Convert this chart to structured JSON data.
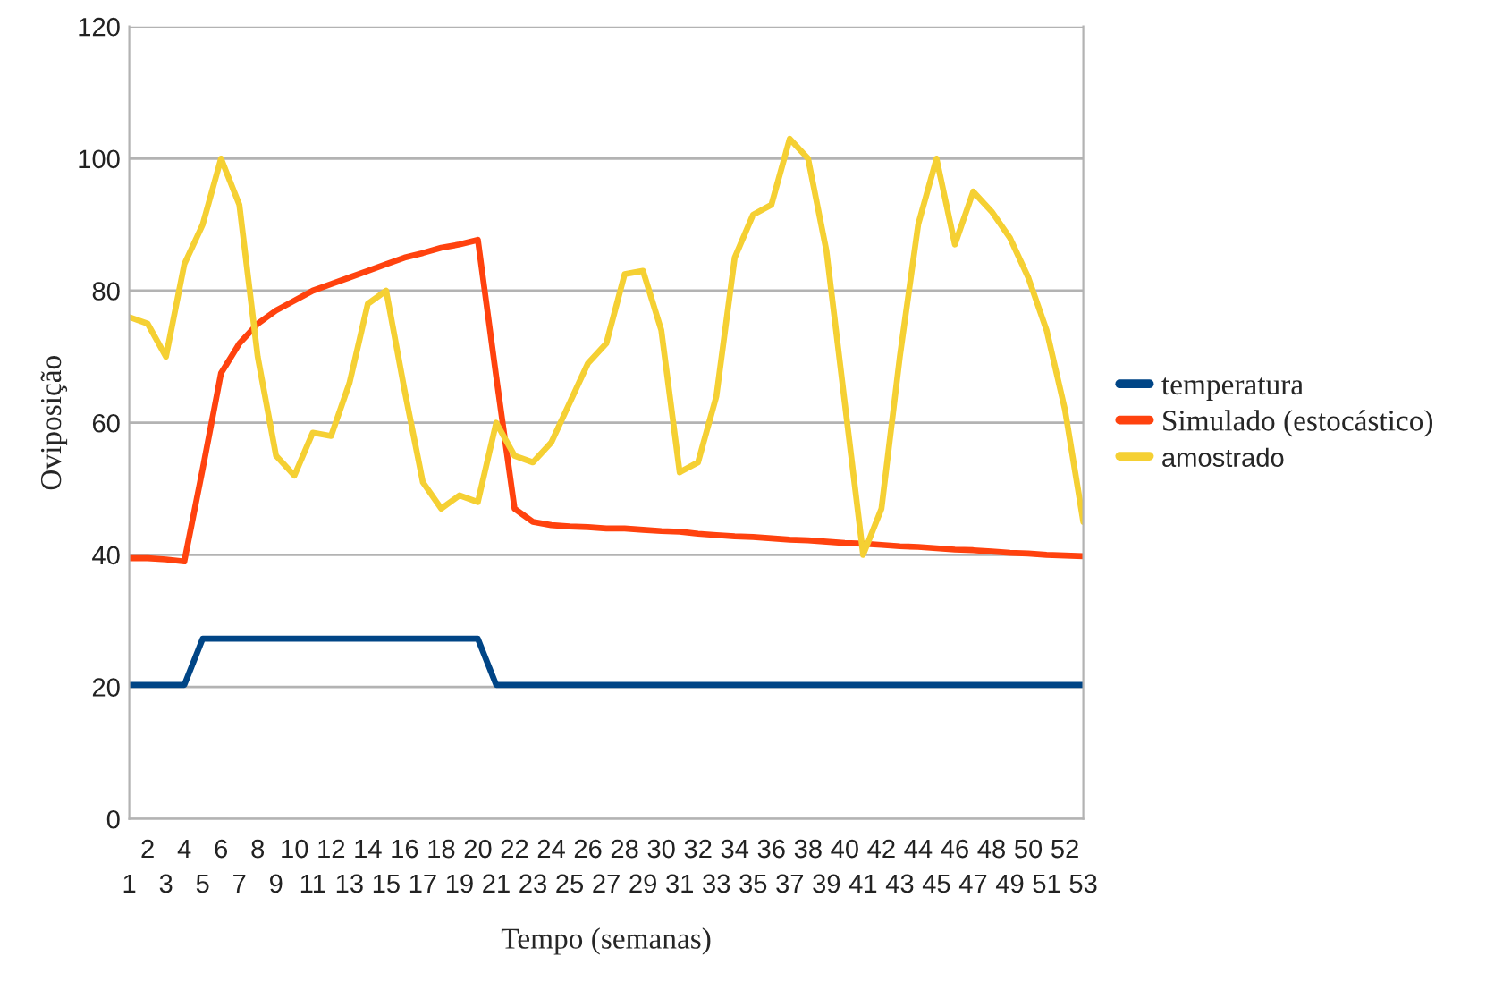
{
  "chart_data": {
    "type": "line",
    "xlabel": "Tempo (semanas)",
    "ylabel": "Oviposição",
    "categories": [
      "1",
      "2",
      "3",
      "4",
      "5",
      "6",
      "7",
      "8",
      "9",
      "10",
      "11",
      "12",
      "13",
      "14",
      "15",
      "16",
      "17",
      "18",
      "19",
      "20",
      "21",
      "22",
      "23",
      "24",
      "25",
      "26",
      "27",
      "28",
      "29",
      "30",
      "31",
      "32",
      "33",
      "34",
      "35",
      "36",
      "37",
      "38",
      "39",
      "40",
      "41",
      "42",
      "43",
      "44",
      "45",
      "46",
      "47",
      "48",
      "49",
      "50",
      "51",
      "52",
      "53"
    ],
    "series": [
      {
        "name": "temperatura",
        "color": "#004586",
        "values": [
          20.3,
          20.3,
          20.3,
          20.3,
          27.3,
          27.3,
          27.3,
          27.3,
          27.3,
          27.3,
          27.3,
          27.3,
          27.3,
          27.3,
          27.3,
          27.3,
          27.3,
          27.3,
          27.3,
          27.3,
          20.3,
          20.3,
          20.3,
          20.3,
          20.3,
          20.3,
          20.3,
          20.3,
          20.3,
          20.3,
          20.3,
          20.3,
          20.3,
          20.3,
          20.3,
          20.3,
          20.3,
          20.3,
          20.3,
          20.3,
          20.3,
          20.3,
          20.3,
          20.3,
          20.3,
          20.3,
          20.3,
          20.3,
          20.3,
          20.3,
          20.3,
          20.3,
          20.3
        ]
      },
      {
        "name": "Simulado (estocástico)",
        "color": "#ff420e",
        "values": [
          39.5,
          39.5,
          39.3,
          39,
          53,
          67.5,
          72,
          75,
          77,
          78.5,
          80,
          81,
          82,
          83,
          84,
          85,
          85.7,
          86.5,
          87,
          87.7,
          67,
          47,
          45,
          44.5,
          44.3,
          44.2,
          44,
          44,
          43.8,
          43.6,
          43.5,
          43.2,
          43,
          42.8,
          42.7,
          42.5,
          42.3,
          42.2,
          42,
          41.8,
          41.7,
          41.5,
          41.3,
          41.2,
          41,
          40.8,
          40.7,
          40.5,
          40.3,
          40.2,
          40,
          39.9,
          39.8
        ]
      },
      {
        "name": "amostrado",
        "color": "#f5d033",
        "values": [
          76,
          75,
          70,
          84,
          90,
          100,
          93,
          70,
          55,
          52,
          58.5,
          58,
          66,
          78,
          80,
          65,
          51,
          47,
          49,
          48,
          60,
          55,
          54,
          57,
          63,
          69,
          72,
          82.5,
          83,
          74,
          52.5,
          54,
          64,
          85,
          91.5,
          93,
          103,
          100,
          86,
          63,
          40,
          47,
          70,
          90,
          100,
          87,
          95,
          92,
          88,
          82,
          74,
          62,
          45
        ]
      }
    ],
    "ylim": [
      0,
      120
    ],
    "yticks": [
      0,
      20,
      40,
      60,
      80,
      100,
      120
    ],
    "grid": "y",
    "legend": "right"
  }
}
